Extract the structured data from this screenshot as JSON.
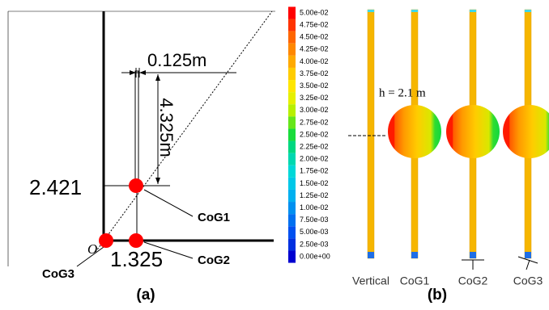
{
  "panel_a": {
    "width_label": "0.125m",
    "height_label": "4.325m",
    "y_label": "2.421",
    "x_label": "1.325",
    "origin": "O",
    "points": [
      "CoG1",
      "CoG2",
      "CoG3"
    ],
    "caption": "(a)"
  },
  "colorbar": {
    "labels": [
      "5.00e-02",
      "4.75e-02",
      "4.50e-02",
      "4.25e-02",
      "4.00e-02",
      "3.75e-02",
      "3.50e-02",
      "3.25e-02",
      "3.00e-02",
      "2.75e-02",
      "2.50e-02",
      "2.25e-02",
      "2.00e-02",
      "1.75e-02",
      "1.50e-02",
      "1.25e-02",
      "1.00e-02",
      "7.50e-03",
      "5.00e-03",
      "2.50e-03",
      "0.00e+00"
    ],
    "colors": [
      "#ff0000",
      "#ff3300",
      "#ff6600",
      "#ff8800",
      "#ffaa00",
      "#ffcc00",
      "#ffe600",
      "#e6f000",
      "#b8f000",
      "#66e61a",
      "#1adc3c",
      "#00d880",
      "#00d8b0",
      "#00d8d8",
      "#00c8e8",
      "#00b0f0",
      "#0090f0",
      "#0070f0",
      "#0050f0",
      "#0030e0",
      "#0000d0"
    ]
  },
  "panel_b": {
    "height_label": "h = 2.1 m",
    "labels": [
      "Vertical",
      "CoG1",
      "CoG2",
      "CoG3"
    ],
    "caption": "(b)"
  }
}
